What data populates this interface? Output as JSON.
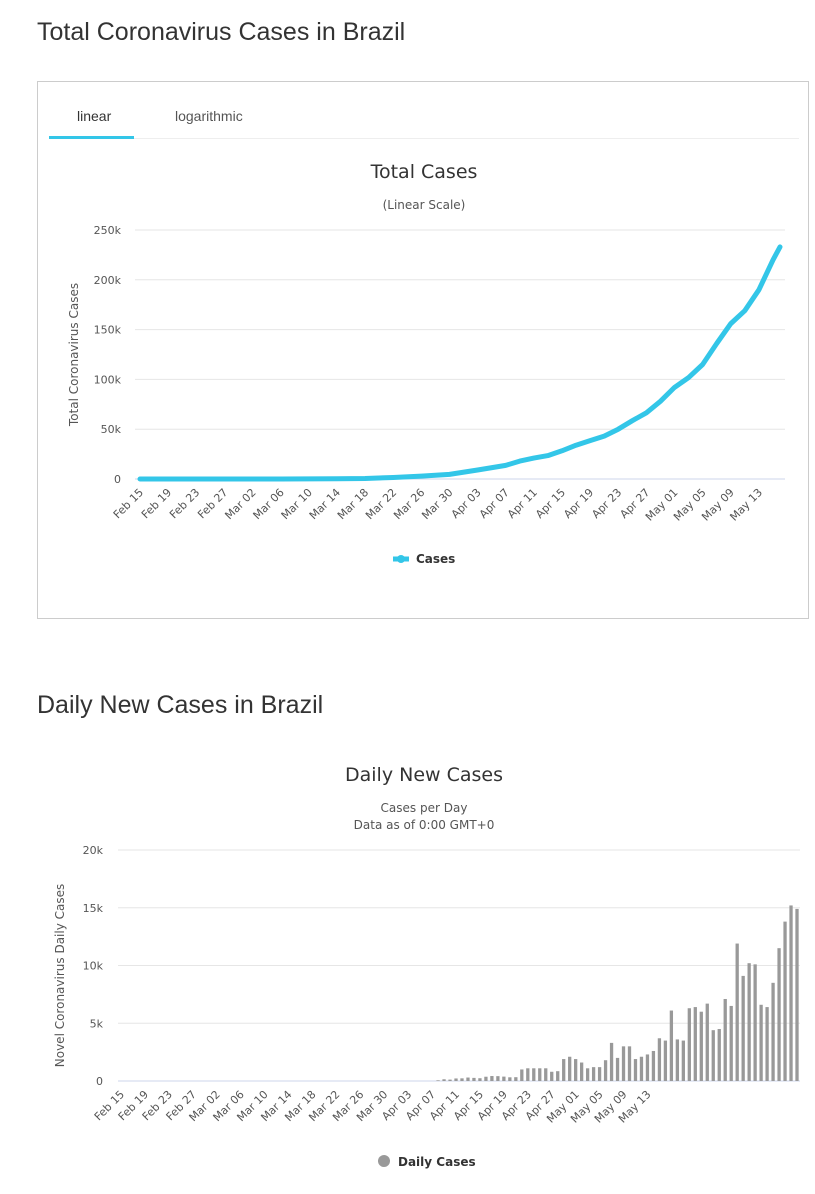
{
  "sections": {
    "total_title": "Total Coronavirus Cases in Brazil",
    "daily_title": "Daily New Cases in Brazil"
  },
  "tabs": {
    "linear": "linear",
    "logarithmic": "logarithmic"
  },
  "colors": {
    "line": "#33c6e8",
    "bar": "#999999",
    "grid": "#e6e6e6"
  },
  "chart_data": [
    {
      "type": "line",
      "title": "Total Cases",
      "subtitle": "(Linear Scale)",
      "ylabel": "Total Coronavirus Cases",
      "ylim": [
        0,
        250000
      ],
      "yticks": [
        "0",
        "50k",
        "100k",
        "150k",
        "200k",
        "250k"
      ],
      "xticks": [
        "Feb 15",
        "Feb 19",
        "Feb 23",
        "Feb 27",
        "Mar 02",
        "Mar 06",
        "Mar 10",
        "Mar 14",
        "Mar 18",
        "Mar 22",
        "Mar 26",
        "Mar 30",
        "Apr 03",
        "Apr 07",
        "Apr 11",
        "Apr 15",
        "Apr 19",
        "Apr 23",
        "Apr 27",
        "May 01",
        "May 05",
        "May 09",
        "May 13"
      ],
      "grid": true,
      "legend": "bottom-center",
      "series": [
        {
          "name": "Cases",
          "x": [
            "Feb 15",
            "Mar 06",
            "Mar 14",
            "Mar 18",
            "Mar 22",
            "Mar 26",
            "Mar 30",
            "Apr 03",
            "Apr 07",
            "Apr 09",
            "Apr 11",
            "Apr 13",
            "Apr 15",
            "Apr 17",
            "Apr 19",
            "Apr 21",
            "Apr 23",
            "Apr 25",
            "Apr 27",
            "Apr 29",
            "May 01",
            "May 03",
            "May 05",
            "May 07",
            "May 09",
            "May 11",
            "May 13",
            "May 15",
            "May 16"
          ],
          "y": [
            0,
            0,
            200,
            500,
            1500,
            2900,
            4600,
            9000,
            13700,
            18000,
            21000,
            23500,
            28300,
            33900,
            38600,
            43100,
            50000,
            58500,
            66500,
            78000,
            92000,
            101800,
            115000,
            136000,
            156000,
            169000,
            190000,
            220000,
            233000
          ]
        }
      ]
    },
    {
      "type": "bar",
      "title": "Daily New Cases",
      "subtitle": [
        "Cases per Day",
        "Data as of 0:00 GMT+0"
      ],
      "ylabel": "Novel Coronavirus Daily Cases",
      "ylim": [
        0,
        20000
      ],
      "yticks": [
        "0",
        "5k",
        "10k",
        "15k",
        "20k"
      ],
      "xticks": [
        "Feb 15",
        "Feb 19",
        "Feb 23",
        "Feb 27",
        "Mar 02",
        "Mar 06",
        "Mar 10",
        "Mar 14",
        "Mar 18",
        "Mar 22",
        "Mar 26",
        "Mar 30",
        "Apr 03",
        "Apr 07",
        "Apr 11",
        "Apr 15",
        "Apr 19",
        "Apr 23",
        "Apr 27",
        "May 01",
        "May 05",
        "May 09",
        "May 13"
      ],
      "grid": true,
      "legend": "bottom-center",
      "series": [
        {
          "name": "Daily Cases",
          "start": "Feb 15",
          "values": [
            0,
            0,
            0,
            0,
            0,
            0,
            0,
            0,
            0,
            0,
            0,
            0,
            0,
            0,
            0,
            0,
            0,
            0,
            0,
            0,
            0,
            0,
            0,
            0,
            0,
            0,
            0,
            0,
            0,
            0,
            0,
            0,
            0,
            0,
            0,
            0,
            0,
            0,
            0,
            0,
            0,
            0,
            0,
            0,
            0,
            0,
            0,
            0,
            0,
            0,
            0,
            0,
            0,
            60,
            150,
            120,
            220,
            230,
            300,
            270,
            240,
            370,
            430,
            420,
            380,
            320,
            330,
            1000,
            1100,
            1100,
            1100,
            1100,
            800,
            850,
            1900,
            2100,
            1900,
            1600,
            1100,
            1200,
            1200,
            1800,
            3300,
            2000,
            3000,
            3000,
            1900,
            2100,
            2300,
            2600,
            3700,
            3500,
            6100,
            3600,
            3500,
            6300,
            6400,
            6000,
            6700,
            4400,
            4500,
            7100,
            6500,
            11900,
            9100,
            10200,
            10100,
            6600,
            6400,
            8500,
            11500,
            13800,
            15200,
            14900
          ]
        }
      ]
    }
  ]
}
